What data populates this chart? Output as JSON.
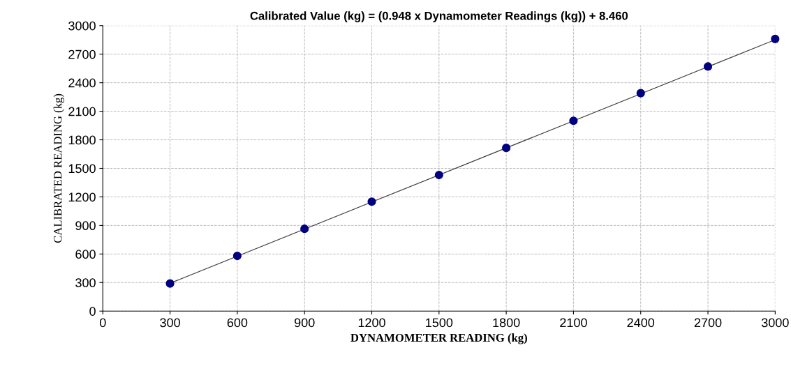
{
  "chart_data": {
    "type": "scatter",
    "title": "Calibrated Value (kg) = (0.948 x Dynamometer Readings (kg)) + 8.460",
    "xlabel": "DYNAMOMETER READING (kg)",
    "ylabel": "CALIBRATED READING (kg)",
    "series": [
      {
        "color": "#000080",
        "marker": "circle",
        "x": [
          300,
          600,
          900,
          1200,
          1500,
          1800,
          2100,
          2400,
          2700,
          3000
        ],
        "values": [
          290,
          580,
          865,
          1150,
          1430,
          1715,
          2000,
          2290,
          2570,
          2860
        ]
      },
      {
        "type": "line",
        "color": "#404040",
        "marker": "none",
        "line_style": "solid",
        "x": [
          300,
          3000
        ],
        "values": [
          293,
          2852
        ]
      }
    ],
    "xlim": [
      0,
      3000
    ],
    "xticks": [
      0,
      300,
      600,
      900,
      1200,
      1500,
      1800,
      2100,
      2400,
      2700,
      3000
    ],
    "ylim": [
      0,
      3000
    ],
    "yticks": [
      0,
      300,
      600,
      900,
      1200,
      1500,
      1800,
      2100,
      2400,
      2700,
      3000
    ],
    "grid": true
  }
}
